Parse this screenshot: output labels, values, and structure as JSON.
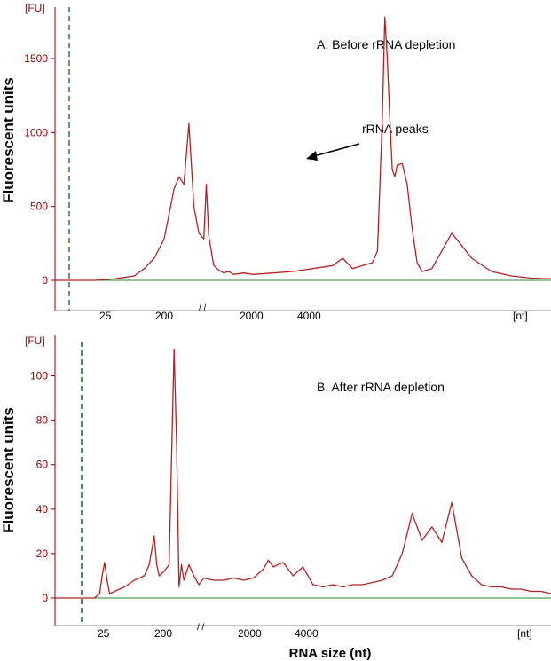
{
  "chart_data": [
    {
      "type": "line",
      "title": "A. Before rRNA depletion",
      "ylabel": "Fluorescent units",
      "y_unit_label": "[FU]",
      "x_unit_label": "[nt]",
      "xlabel": "",
      "ylim": [
        0,
        1800
      ],
      "y_ticks": [
        0,
        500,
        1000,
        1500
      ],
      "x_tick_labels": [
        "25",
        "200",
        "2000",
        "4000"
      ],
      "annotation": "rRNA peaks",
      "colors": {
        "trace": "#b22222",
        "baseline": "#2e8b2e",
        "axis": "#8b0000",
        "marker": "#2e7d32"
      },
      "series": [
        {
          "x": [
            0,
            8,
            12,
            16,
            18,
            20,
            22,
            23,
            24,
            25,
            26,
            27,
            28,
            29,
            30,
            30.5,
            31,
            32,
            33,
            34,
            35,
            36,
            38,
            40,
            44,
            48,
            52,
            56,
            58,
            60,
            62,
            64,
            65,
            66,
            66.5,
            67,
            67.5,
            68,
            68.5,
            69,
            70,
            71,
            72,
            73,
            74,
            76,
            78,
            80,
            84,
            88,
            92,
            96,
            100
          ],
          "y": [
            0,
            0,
            10,
            30,
            80,
            150,
            280,
            450,
            620,
            700,
            650,
            1060,
            500,
            320,
            280,
            650,
            300,
            100,
            70,
            50,
            60,
            40,
            50,
            40,
            50,
            60,
            80,
            100,
            150,
            80,
            100,
            120,
            200,
            1100,
            1780,
            1500,
            1100,
            750,
            700,
            780,
            790,
            650,
            350,
            120,
            60,
            80,
            200,
            320,
            150,
            60,
            30,
            15,
            10
          ]
        }
      ]
    },
    {
      "type": "line",
      "title": "B. After rRNA depletion",
      "ylabel": "Fluorescent units",
      "y_unit_label": "[FU]",
      "x_unit_label": "[nt]",
      "xlabel": "RNA size (nt)",
      "ylim": [
        0,
        115
      ],
      "y_ticks": [
        0,
        20,
        40,
        60,
        80,
        100
      ],
      "x_tick_labels": [
        "25",
        "200",
        "2000",
        "4000"
      ],
      "colors": {
        "trace": "#b22222",
        "baseline": "#2e8b2e",
        "axis": "#8b0000",
        "marker": "#1b5e20"
      },
      "series": [
        {
          "x": [
            0,
            8,
            9,
            9.5,
            10,
            10.5,
            11,
            12,
            14,
            16,
            18,
            19,
            20,
            20.5,
            21,
            22,
            23,
            24,
            24.5,
            25,
            25.5,
            26,
            27,
            28,
            29,
            30,
            32,
            34,
            36,
            38,
            40,
            42,
            43,
            44,
            46,
            48,
            50,
            52,
            54,
            56,
            58,
            60,
            62,
            64,
            66,
            68,
            70,
            72,
            74,
            76,
            78,
            80,
            82,
            84,
            86,
            88,
            90,
            92,
            94,
            96,
            98,
            100
          ],
          "y": [
            0,
            0,
            2,
            10,
            16,
            8,
            2,
            3,
            5,
            8,
            10,
            15,
            28,
            15,
            10,
            12,
            15,
            112,
            70,
            5,
            15,
            8,
            15,
            10,
            6,
            9,
            8,
            8,
            9,
            8,
            9,
            13,
            17,
            14,
            16,
            10,
            14,
            6,
            5,
            6,
            5,
            6,
            6,
            7,
            8,
            10,
            20,
            38,
            26,
            32,
            25,
            43,
            18,
            10,
            6,
            5,
            5,
            4,
            4,
            3,
            3,
            2
          ]
        }
      ]
    }
  ]
}
